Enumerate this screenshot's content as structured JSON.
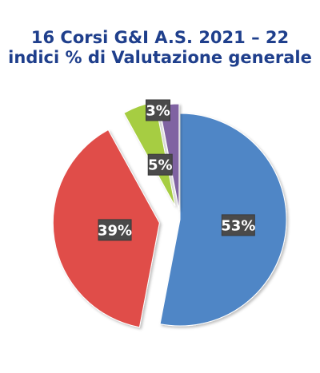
{
  "chart_data": {
    "type": "pie",
    "title": "16 Corsi G&I A.S. 2021 – 22",
    "subtitle": "indici % di Valutazione generale",
    "categories": [
      "",
      "",
      "",
      ""
    ],
    "values": [
      53,
      39,
      5,
      3
    ],
    "labels": [
      "53%",
      "39%",
      "5%",
      "3%"
    ],
    "colors": [
      "#4f86c6",
      "#e04d4a",
      "#a6cd42",
      "#8064a2"
    ],
    "exploded": true,
    "legend": "none"
  }
}
